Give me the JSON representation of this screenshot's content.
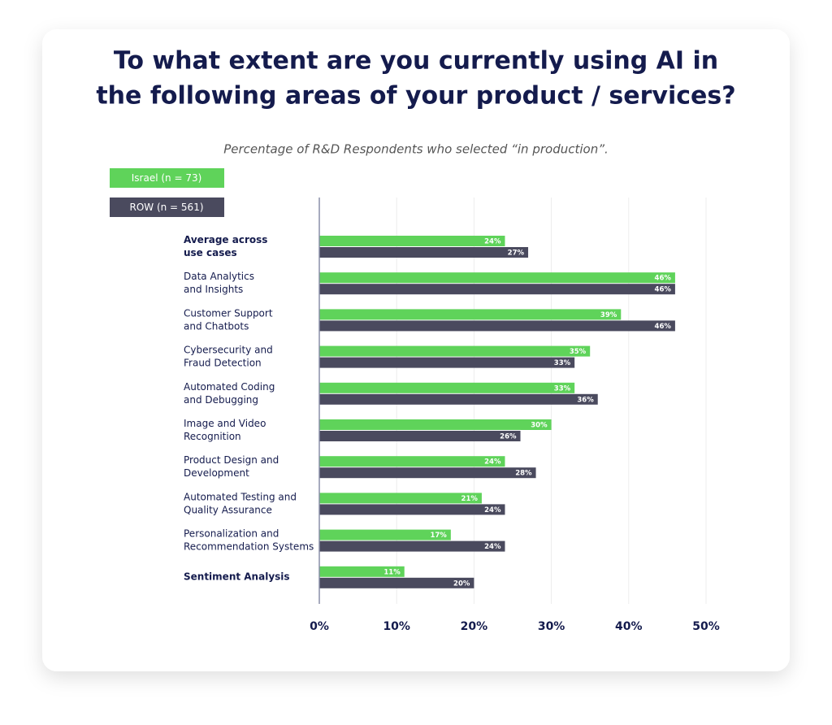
{
  "chart_data": {
    "type": "hbar",
    "title": "To what extent are you currently using AI in\nthe following areas of your product / services?",
    "subtitle": "Percentage of R&D Respondents who selected “in production”.",
    "categories": [
      "Average across\nuse cases",
      "Data Analytics\nand Insights",
      "Customer Support\nand Chatbots",
      "Cybersecurity and\nFraud Detection",
      "Automated Coding\nand Debugging",
      "Image and Video\nRecognition",
      "Product Design and\nDevelopment",
      "Automated Testing and\nQuality Assurance",
      "Personalization and\nRecommendation Systems",
      "Sentiment Analysis"
    ],
    "series": [
      {
        "name": "Israel (n = 73)",
        "color": "#5fd35a",
        "values": [
          24,
          46,
          39,
          35,
          33,
          30,
          24,
          21,
          17,
          11
        ],
        "value_labels": [
          "24%",
          "46%",
          "39%",
          "35%",
          "33%",
          "30%",
          "24%",
          "21%",
          "17%",
          "11%"
        ]
      },
      {
        "name": "ROW (n = 561)",
        "color": "#4a4a5e",
        "values": [
          27,
          46,
          46,
          33,
          36,
          26,
          28,
          24,
          24,
          20
        ],
        "value_labels": [
          "27%",
          "46%",
          "46%",
          "33%",
          "36%",
          "26%",
          "28%",
          "24%",
          "24%",
          "20%"
        ]
      }
    ],
    "xlim": [
      0,
      50
    ],
    "xticks": [
      {
        "value": 0,
        "label": "0%"
      },
      {
        "value": 10,
        "label": "10%"
      },
      {
        "value": 20,
        "label": "20%"
      },
      {
        "value": 30,
        "label": "30%"
      },
      {
        "value": 40,
        "label": "40%"
      },
      {
        "value": 50,
        "label": "50%"
      }
    ],
    "grid": true
  }
}
